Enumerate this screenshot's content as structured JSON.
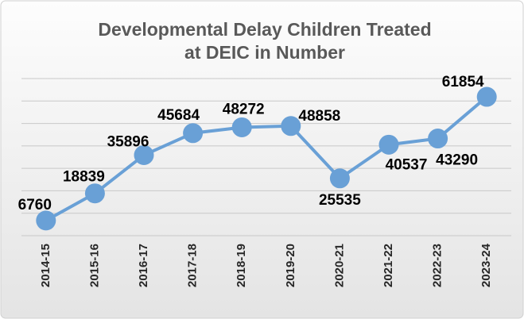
{
  "chart_data": {
    "type": "line",
    "title": "Developmental Delay Children Treated",
    "subtitle": "at DEIC in Number",
    "categories": [
      "2014-15",
      "2015-16",
      "2016-17",
      "2017-18",
      "2018-19",
      "2019-20",
      "2020-21",
      "2021-22",
      "2022-23",
      "2023-24"
    ],
    "series": [
      {
        "name": "Children",
        "color": "#69a0d6",
        "values": [
          6760,
          18839,
          35896,
          45684,
          48272,
          48858,
          25535,
          40537,
          43290,
          61854
        ]
      }
    ],
    "ylim": [
      0,
      70000
    ],
    "yticks": [
      0,
      10000,
      20000,
      30000,
      40000,
      50000,
      60000,
      70000
    ],
    "grid": true
  }
}
